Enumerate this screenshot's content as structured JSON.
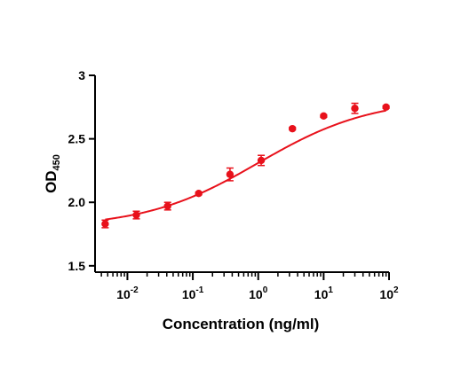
{
  "chart_data": {
    "type": "scatter",
    "title": "",
    "xlabel": "Concentration (ng/ml)",
    "ylabel": {
      "base": "OD",
      "subscript": "450"
    },
    "x_scale": "log",
    "xlim": [
      0.0032,
      100
    ],
    "ylim": [
      1.45,
      3.0
    ],
    "x_ticks": [
      {
        "value": 0.01,
        "base": "10",
        "exp": "-2"
      },
      {
        "value": 0.1,
        "base": "10",
        "exp": "-1"
      },
      {
        "value": 1,
        "base": "10",
        "exp": "0"
      },
      {
        "value": 10,
        "base": "10",
        "exp": "1"
      },
      {
        "value": 100,
        "base": "10",
        "exp": "2"
      }
    ],
    "y_ticks": [
      {
        "value": 1.5,
        "label": "1.5"
      },
      {
        "value": 2.0,
        "label": "2.0"
      },
      {
        "value": 2.5,
        "label": "2.5"
      },
      {
        "value": 3.0,
        "label": "3"
      }
    ],
    "series": [
      {
        "color": "#e8111b",
        "points": [
          {
            "x": 0.00457,
            "y": 1.83,
            "err": 0.03
          },
          {
            "x": 0.0137,
            "y": 1.9,
            "err": 0.03
          },
          {
            "x": 0.0412,
            "y": 1.97,
            "err": 0.03
          },
          {
            "x": 0.123,
            "y": 2.07,
            "err": 0.01
          },
          {
            "x": 0.37,
            "y": 2.22,
            "err": 0.05
          },
          {
            "x": 1.11,
            "y": 2.33,
            "err": 0.04
          },
          {
            "x": 3.33,
            "y": 2.58,
            "err": 0.01
          },
          {
            "x": 10,
            "y": 2.68,
            "err": 0.01
          },
          {
            "x": 30,
            "y": 2.74,
            "err": 0.04
          },
          {
            "x": 90,
            "y": 2.75,
            "err": 0.01
          }
        ],
        "fit": {
          "model": "4PL",
          "bottom": 1.8,
          "top": 2.82,
          "ec50": 1.0,
          "hill": 0.5
        }
      }
    ],
    "grid": false,
    "legend": "none"
  }
}
